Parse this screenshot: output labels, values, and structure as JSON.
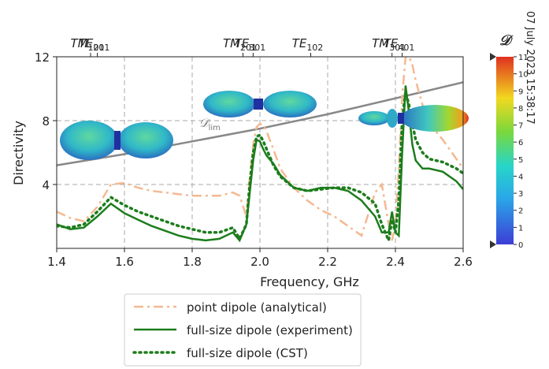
{
  "chart_data": {
    "type": "line",
    "x_label": "Frequency, GHz",
    "y_label": "Directivity",
    "xlim": [
      1.4,
      2.6
    ],
    "ylim": [
      0,
      12
    ],
    "xticks": [
      1.4,
      1.6,
      1.8,
      {
        "value": 2.0,
        "label": "2.0"
      },
      2.2,
      2.4,
      2.6
    ],
    "yticks": [
      4,
      8,
      12
    ],
    "grid": true,
    "top_ticks": [
      {
        "value": 1.5,
        "label": "TM",
        "sub": "101"
      },
      {
        "value": 1.52,
        "label": "TE",
        "sub": "201"
      },
      {
        "value": 1.95,
        "label": "TM",
        "sub": "201"
      },
      {
        "value": 1.98,
        "label": "TE",
        "sub": "301"
      },
      {
        "value": 2.15,
        "label": "TE",
        "sub": "102"
      },
      {
        "value": 2.39,
        "label": "TM",
        "sub": "301"
      },
      {
        "value": 2.42,
        "label": "TE",
        "sub": "401"
      }
    ],
    "x": [
      1.4,
      1.44,
      1.48,
      1.52,
      1.56,
      1.6,
      1.64,
      1.68,
      1.72,
      1.76,
      1.8,
      1.84,
      1.88,
      1.92,
      1.94,
      1.96,
      1.97,
      1.98,
      1.99,
      2.0,
      2.01,
      2.02,
      2.04,
      2.06,
      2.1,
      2.14,
      2.18,
      2.22,
      2.26,
      2.3,
      2.34,
      2.36,
      2.38,
      2.39,
      2.4,
      2.41,
      2.42,
      2.43,
      2.44,
      2.45,
      2.46,
      2.48,
      2.5,
      2.54,
      2.58,
      2.6
    ],
    "series": [
      {
        "name": "point dipole (analytical)",
        "color": "#f4b992",
        "style": "dashdot",
        "values": [
          2.3,
          1.9,
          1.7,
          2.6,
          4.0,
          4.1,
          3.8,
          3.6,
          3.5,
          3.4,
          3.3,
          3.3,
          3.3,
          3.5,
          3.3,
          2.0,
          4.5,
          6.5,
          7.6,
          7.8,
          7.7,
          7.3,
          6.2,
          5.0,
          3.8,
          3.0,
          2.4,
          2.0,
          1.4,
          0.8,
          3.5,
          4.0,
          1.5,
          0.5,
          1.5,
          5.0,
          9.5,
          12,
          12,
          11.5,
          10.5,
          9.0,
          7.8,
          6.8,
          5.6,
          5.0
        ]
      },
      {
        "name": "full-size dipole (experiment)",
        "color": "#1c7d1c",
        "style": "solid",
        "values": [
          1.5,
          1.2,
          1.3,
          2.0,
          2.8,
          2.2,
          1.8,
          1.4,
          1.1,
          0.8,
          0.6,
          0.5,
          0.6,
          1.0,
          0.5,
          1.5,
          3.5,
          5.5,
          6.8,
          6.7,
          6.2,
          5.8,
          5.3,
          4.6,
          3.8,
          3.6,
          3.8,
          3.8,
          3.6,
          3.0,
          2.0,
          1.0,
          1.0,
          2.3,
          1.0,
          0.8,
          6.0,
          10.2,
          8.5,
          6.5,
          5.5,
          5.0,
          5.0,
          4.8,
          4.2,
          3.7
        ]
      },
      {
        "name": "full-size dipole (CST)",
        "color": "#1c7d1c",
        "style": "dotted",
        "values": [
          1.4,
          1.3,
          1.5,
          2.3,
          3.2,
          2.7,
          2.3,
          2.0,
          1.7,
          1.4,
          1.2,
          1.0,
          1.0,
          1.3,
          0.6,
          1.5,
          4.0,
          6.0,
          7.0,
          7.1,
          6.7,
          6.2,
          5.2,
          4.5,
          3.8,
          3.6,
          3.7,
          3.8,
          3.8,
          3.5,
          2.8,
          1.5,
          0.5,
          1.8,
          1.0,
          3.0,
          8.0,
          9.8,
          9.0,
          7.8,
          6.8,
          6.0,
          5.6,
          5.4,
          5.0,
          4.7
        ]
      }
    ],
    "reference_line": {
      "label": "𝒟",
      "sub": "lim",
      "color": "#888888",
      "x": [
        1.4,
        1.6,
        1.8,
        2.0,
        2.2,
        2.4,
        2.6
      ],
      "values": [
        5.2,
        5.9,
        6.7,
        7.5,
        8.4,
        9.4,
        10.4
      ]
    },
    "colorbar": {
      "title": "𝒟",
      "lim": [
        0,
        11
      ],
      "ticks": [
        0,
        1,
        2,
        3,
        4,
        5,
        6,
        7,
        8,
        9,
        10,
        11
      ]
    },
    "timestamp": "07 July 2023 15:38:17"
  }
}
